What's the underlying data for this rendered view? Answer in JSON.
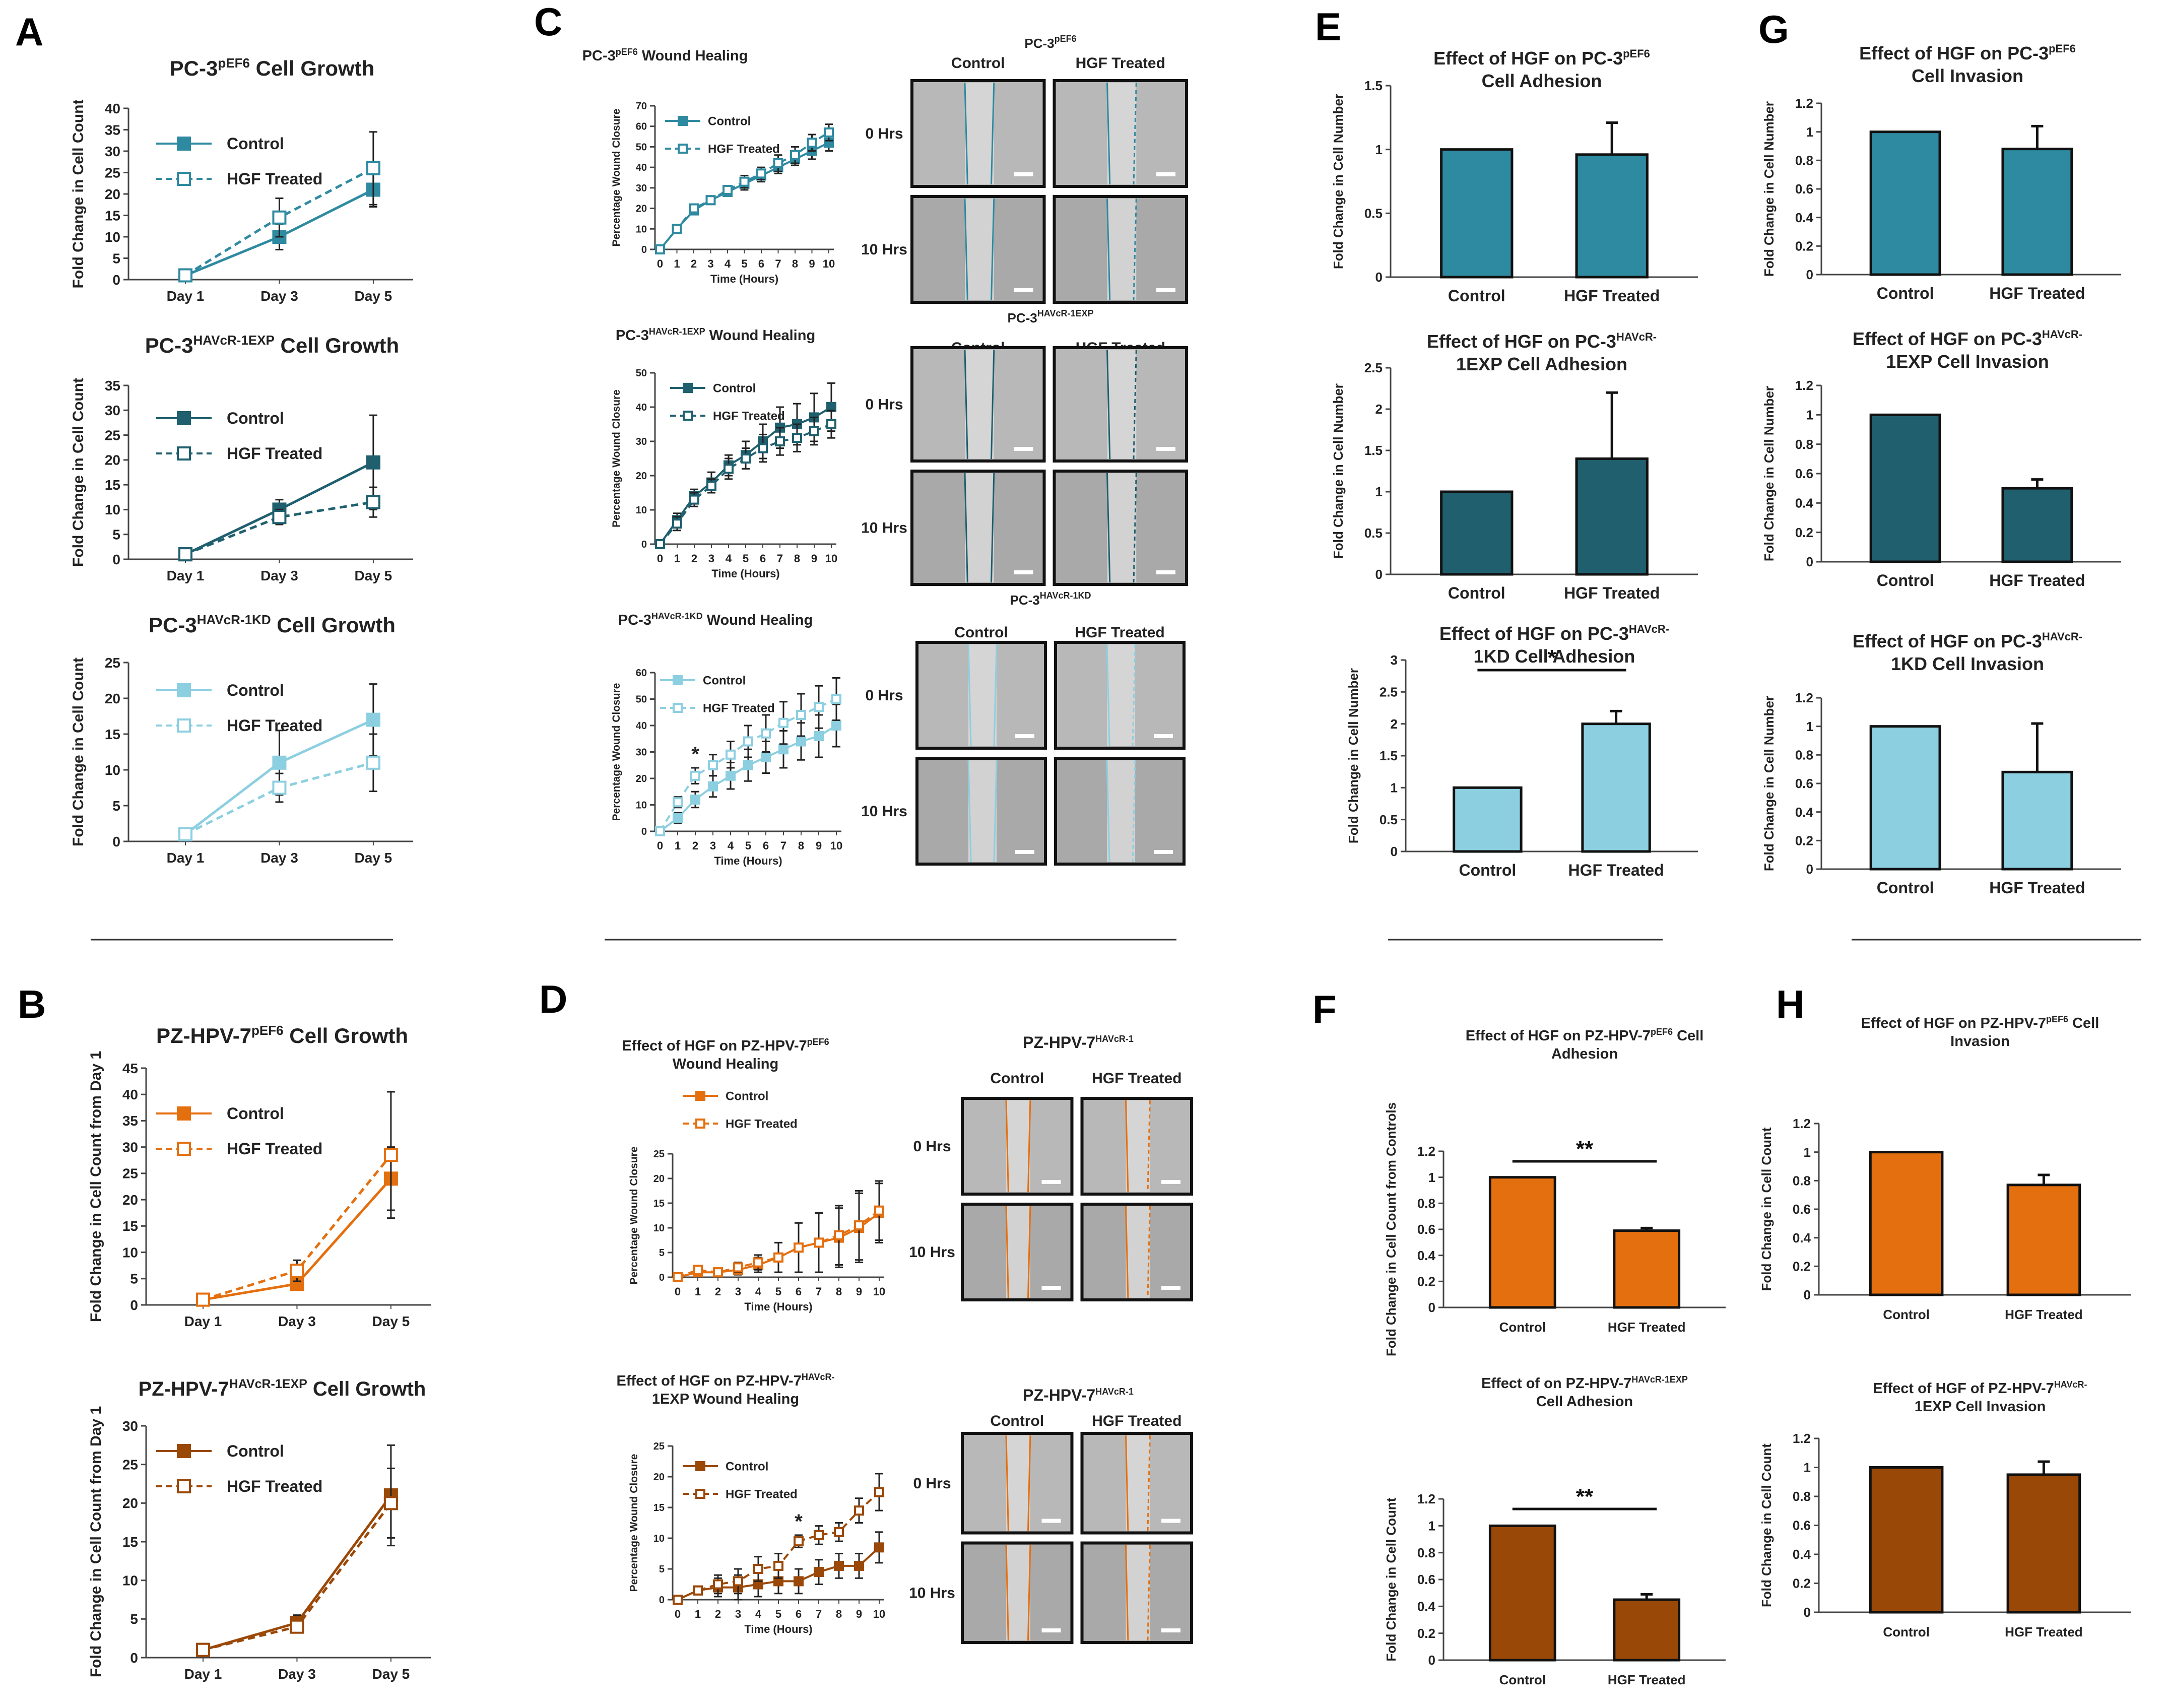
{
  "colors": {
    "teal": "#2e8aa0",
    "darkteal": "#1f5f6e",
    "lightblue": "#8ccfe0",
    "orange": "#e46f0f",
    "brown": "#9a4808",
    "micro": "#9b9b9b",
    "microdark": "#4a4a4a"
  },
  "chart_data": [
    {
      "id": "A1",
      "type": "line",
      "panel": "A",
      "title": "PC-3",
      "title_sup": "pEF6",
      "title_suffix": " Cell Growth",
      "ylabel": "Fold Change in Cell Count",
      "categories": [
        "Day 1",
        "Day 3",
        "Day 5"
      ],
      "ylim": [
        0,
        40
      ],
      "yticks": [
        0,
        5,
        10,
        15,
        20,
        25,
        30,
        35,
        40
      ],
      "color": "teal",
      "series": [
        {
          "name": "Control",
          "values": [
            1,
            10,
            21
          ],
          "errors": [
            0,
            3,
            4
          ]
        },
        {
          "name": "HGF Treated",
          "values": [
            1,
            14.5,
            26
          ],
          "errors": [
            0,
            4.5,
            8.5
          ]
        }
      ]
    },
    {
      "id": "A2",
      "type": "line",
      "title": "PC-3",
      "title_sup": "HAVcR-1EXP",
      "title_suffix": " Cell Growth",
      "ylabel": "Fold Change in Cell Count",
      "categories": [
        "Day 1",
        "Day 3",
        "Day 5"
      ],
      "ylim": [
        0,
        35
      ],
      "yticks": [
        0,
        5,
        10,
        15,
        20,
        25,
        30,
        35
      ],
      "color": "darkteal",
      "series": [
        {
          "name": "Control",
          "values": [
            1,
            10,
            19.5
          ],
          "errors": [
            0,
            2,
            9.5
          ]
        },
        {
          "name": "HGF Treated",
          "values": [
            1,
            8.5,
            11.5
          ],
          "errors": [
            0,
            1.5,
            3
          ]
        }
      ]
    },
    {
      "id": "A3",
      "type": "line",
      "title": "PC-3",
      "title_sup": "HAVcR-1KD",
      "title_suffix": " Cell Growth",
      "ylabel": "Fold Change in Cell Count",
      "categories": [
        "Day 1",
        "Day 3",
        "Day 5"
      ],
      "ylim": [
        0,
        25
      ],
      "yticks": [
        0,
        5,
        10,
        15,
        20,
        25
      ],
      "color": "lightblue",
      "series": [
        {
          "name": "Control",
          "values": [
            1,
            11,
            17
          ],
          "errors": [
            0,
            4.5,
            5
          ]
        },
        {
          "name": "HGF Treated",
          "values": [
            1,
            7.5,
            11
          ],
          "errors": [
            0,
            2,
            4
          ]
        }
      ]
    },
    {
      "id": "B1",
      "type": "line",
      "panel": "B",
      "title": "PZ-HPV-7",
      "title_sup": "pEF6",
      "title_suffix": " Cell Growth",
      "ylabel": "Fold Change in Cell Count from Day 1",
      "categories": [
        "Day 1",
        "Day 3",
        "Day 5"
      ],
      "ylim": [
        0,
        45
      ],
      "yticks": [
        0,
        5,
        10,
        15,
        20,
        25,
        30,
        35,
        40,
        45
      ],
      "color": "orange",
      "series": [
        {
          "name": "Control",
          "values": [
            1,
            4,
            24
          ],
          "errors": [
            0,
            1,
            6
          ]
        },
        {
          "name": "HGF Treated",
          "values": [
            1,
            6.5,
            28.5
          ],
          "errors": [
            0,
            2,
            12
          ]
        }
      ]
    },
    {
      "id": "B2",
      "type": "line",
      "title": "PZ-HPV-7",
      "title_sup": "HAVcR-1EXP",
      "title_suffix": " Cell Growth",
      "ylabel": "Fold Change in Cell Count from Day 1",
      "categories": [
        "Day 1",
        "Day 3",
        "Day 5"
      ],
      "ylim": [
        0,
        30
      ],
      "yticks": [
        0,
        5,
        10,
        15,
        20,
        25,
        30
      ],
      "color": "brown",
      "series": [
        {
          "name": "Control",
          "values": [
            1,
            4.5,
            21
          ],
          "errors": [
            0,
            1,
            6.5
          ]
        },
        {
          "name": "HGF Treated",
          "values": [
            1,
            4,
            20
          ],
          "errors": [
            0,
            0.5,
            4.5
          ]
        }
      ]
    },
    {
      "id": "C1",
      "type": "line",
      "panel": "C",
      "title": "PC-3",
      "title_sup": "pEF6",
      "title_suffix": " Wound Healing",
      "ylabel": "Percentage Wound Closure",
      "xlabel": "Time (Hours)",
      "x": [
        0,
        1,
        2,
        3,
        4,
        5,
        6,
        7,
        8,
        9,
        10
      ],
      "ylim": [
        0,
        70
      ],
      "yticks": [
        0,
        10,
        20,
        30,
        40,
        50,
        60,
        70
      ],
      "color": "teal",
      "series": [
        {
          "name": "Control",
          "values": [
            0,
            10,
            19,
            24,
            28,
            32,
            36,
            40,
            44,
            48,
            52
          ],
          "errors": [
            1,
            2,
            2,
            2,
            2,
            3,
            3,
            3,
            3,
            4,
            4
          ]
        },
        {
          "name": "HGF Treated",
          "values": [
            0,
            10,
            20,
            24,
            29,
            33,
            37,
            42,
            46,
            52,
            57
          ],
          "errors": [
            1,
            2,
            2,
            2,
            2,
            3,
            3,
            4,
            4,
            4,
            4
          ]
        }
      ]
    },
    {
      "id": "C2",
      "type": "line",
      "title": "PC-3",
      "title_sup": "HAVcR-1EXP",
      "title_suffix": " Wound Healing",
      "ylabel": "Percentage Wound Closure",
      "xlabel": "Time (Hours)",
      "x": [
        0,
        1,
        2,
        3,
        4,
        5,
        6,
        7,
        8,
        9,
        10
      ],
      "ylim": [
        0,
        50
      ],
      "yticks": [
        0,
        10,
        20,
        30,
        40,
        50
      ],
      "color": "darkteal",
      "series": [
        {
          "name": "Control",
          "values": [
            0,
            7,
            14,
            18,
            23,
            26,
            30,
            34,
            35,
            37,
            40
          ],
          "errors": [
            1,
            2,
            2,
            3,
            3,
            4,
            5,
            6,
            6,
            7,
            7
          ]
        },
        {
          "name": "HGF Treated",
          "values": [
            0,
            6,
            13,
            17,
            22,
            25,
            28,
            30,
            31,
            33,
            35
          ],
          "errors": [
            1,
            2,
            2,
            2,
            3,
            3,
            4,
            4,
            4,
            4,
            4
          ]
        }
      ]
    },
    {
      "id": "C3",
      "type": "line",
      "title": "PC-3",
      "title_sup": "HAVcR-1KD",
      "title_suffix": " Wound Healing",
      "ylabel": "Percentage Wound Closure",
      "xlabel": "Time (Hours)",
      "x": [
        0,
        1,
        2,
        3,
        4,
        5,
        6,
        7,
        8,
        9,
        10
      ],
      "ylim": [
        0,
        60
      ],
      "yticks": [
        0,
        10,
        20,
        30,
        40,
        50,
        60
      ],
      "color": "lightblue",
      "star": 2,
      "series": [
        {
          "name": "Control",
          "values": [
            0,
            5,
            12,
            17,
            21,
            25,
            28,
            31,
            34,
            36,
            40
          ],
          "errors": [
            1,
            2,
            3,
            4,
            5,
            6,
            6,
            7,
            7,
            8,
            8
          ]
        },
        {
          "name": "HGF Treated",
          "values": [
            0,
            11,
            21,
            25,
            29,
            34,
            37,
            41,
            44,
            47,
            50
          ],
          "errors": [
            1,
            2,
            3,
            4,
            5,
            6,
            7,
            8,
            8,
            8,
            8
          ]
        }
      ]
    },
    {
      "id": "D1",
      "type": "line",
      "panel": "D",
      "title": "Effect of HGF on PZ-HPV-7",
      "title_sup": "pEF6",
      "title_line2": "Wound Healing",
      "ylabel": "Percentage Wound Closure",
      "xlabel": "Time (Hours)",
      "x": [
        0,
        1,
        2,
        3,
        4,
        5,
        6,
        7,
        8,
        9,
        10
      ],
      "ylim": [
        0,
        25
      ],
      "yticks": [
        0,
        5,
        10,
        15,
        20,
        25
      ],
      "color": "orange",
      "series": [
        {
          "name": "Control",
          "values": [
            0,
            1,
            1,
            1.5,
            2.5,
            4,
            6,
            7,
            8,
            10,
            13
          ],
          "errors": [
            0.3,
            0.5,
            0.5,
            1,
            1.5,
            3,
            5,
            6,
            6,
            7,
            6
          ]
        },
        {
          "name": "HGF Treated",
          "values": [
            0,
            1.5,
            1,
            2,
            3,
            4,
            6,
            7,
            8.5,
            10.5,
            13.5
          ],
          "errors": [
            0.3,
            0.5,
            0.5,
            1,
            1.5,
            3,
            5,
            6,
            6,
            7,
            6
          ]
        }
      ]
    },
    {
      "id": "D2",
      "type": "line",
      "title": "Effect of HGF on PZ-HPV-7",
      "title_sup": "HAVcR-",
      "title_line2": "1EXP Wound Healing",
      "ylabel": "Percentage Wound Closure",
      "xlabel": "Time (Hours)",
      "x": [
        0,
        1,
        2,
        3,
        4,
        5,
        6,
        7,
        8,
        9,
        10
      ],
      "ylim": [
        0,
        25
      ],
      "yticks": [
        0,
        5,
        10,
        15,
        20,
        25
      ],
      "color": "brown",
      "star": 6,
      "series": [
        {
          "name": "Control",
          "values": [
            0,
            1.5,
            2,
            2,
            2.5,
            3,
            3,
            4.5,
            5.5,
            5.5,
            8.5
          ],
          "errors": [
            0.3,
            0.5,
            1.5,
            2,
            2,
            2,
            2,
            2,
            2,
            2,
            2.5
          ]
        },
        {
          "name": "HGF Treated",
          "values": [
            0,
            1.5,
            2.5,
            3,
            5,
            5.5,
            9.5,
            10.5,
            11,
            14.5,
            17.5
          ],
          "errors": [
            0.3,
            0.5,
            1.5,
            2,
            2,
            2,
            1,
            1.5,
            1.5,
            2,
            3
          ]
        }
      ]
    },
    {
      "id": "E1",
      "type": "bar",
      "panel": "E",
      "title": "Effect of HGF on PC-3",
      "title_sup": "pEF6",
      "title_line2": "Cell Adhesion",
      "ylabel": "Fold Change in Cell Number",
      "categories": [
        "Control",
        "HGF Treated"
      ],
      "values": [
        1,
        0.96
      ],
      "errors": [
        0,
        0.25
      ],
      "ylim": [
        0,
        1.5
      ],
      "yticks": [
        "0",
        "0.5",
        "1",
        "1.5"
      ],
      "color": "teal"
    },
    {
      "id": "E2",
      "type": "bar",
      "title": "Effect of HGF on PC-3",
      "title_sup": "HAVcR-",
      "title_line2": "1EXP Cell Adhesion",
      "ylabel": "Fold Change in Cell Number",
      "categories": [
        "Control",
        "HGF Treated"
      ],
      "values": [
        1,
        1.4
      ],
      "errors": [
        0,
        0.8
      ],
      "ylim": [
        0,
        2.5
      ],
      "yticks": [
        "0",
        "0.5",
        "1",
        "1.5",
        "2",
        "2.5"
      ],
      "color": "darkteal"
    },
    {
      "id": "E3",
      "type": "bar",
      "title": "Effect of HGF on PC-3",
      "title_sup": "HAVcR-",
      "title_line2": "1KD Cell Adhesion",
      "ylabel": "Fold Change in Cell Number",
      "categories": [
        "Control",
        "HGF Treated"
      ],
      "values": [
        1,
        2
      ],
      "errors": [
        0,
        0.2
      ],
      "ylim": [
        0,
        3
      ],
      "yticks": [
        "0",
        "0.5",
        "1",
        "1.5",
        "2",
        "2.5",
        "3"
      ],
      "color": "lightblue",
      "sig": "*"
    },
    {
      "id": "F1",
      "type": "bar",
      "panel": "F",
      "title": "Effect of HGF on PZ-HPV-7",
      "title_sup": "pEF6",
      "title_suffix": " Cell",
      "title_line2": "Adhesion",
      "ylabel": "Fold Change in Cell Count from Controls",
      "categories": [
        "Control",
        "HGF Treated"
      ],
      "values": [
        1,
        0.59
      ],
      "errors": [
        0,
        0.02
      ],
      "ylim": [
        0,
        1.2
      ],
      "yticks": [
        "0",
        "0.2",
        "0.4",
        "0.6",
        "0.8",
        "1",
        "1.2"
      ],
      "color": "orange",
      "sig": "**"
    },
    {
      "id": "F2",
      "type": "bar",
      "title": "Effect of  on PZ-HPV-7",
      "title_sup": "HAVcR-1EXP",
      "title_line2": "Cell Adhesion",
      "ylabel": "Fold Change in Cell Count",
      "categories": [
        "Control",
        "HGF Treated"
      ],
      "values": [
        1,
        0.45
      ],
      "errors": [
        0,
        0.04
      ],
      "ylim": [
        0,
        1.2
      ],
      "yticks": [
        "0",
        "0.2",
        "0.4",
        "0.6",
        "0.8",
        "1",
        "1.2"
      ],
      "color": "brown",
      "sig": "**"
    },
    {
      "id": "G1",
      "type": "bar",
      "panel": "G",
      "title": "Effect of HGF on PC-3",
      "title_sup": "pEF6",
      "title_line2": "Cell Invasion",
      "ylabel": "Fold Change in Cell Number",
      "categories": [
        "Control",
        "HGF Treated"
      ],
      "values": [
        1,
        0.88
      ],
      "errors": [
        0,
        0.16
      ],
      "ylim": [
        0,
        1.2
      ],
      "yticks": [
        "0",
        "0.2",
        "0.4",
        "0.6",
        "0.8",
        "1",
        "1.2"
      ],
      "color": "teal"
    },
    {
      "id": "G2",
      "type": "bar",
      "title": "Effect of HGF on PC-3",
      "title_sup": "HAVcR-",
      "title_line2": "1EXP Cell Invasion",
      "ylabel": "Fold Change in Cell Number",
      "categories": [
        "Control",
        "HGF Treated"
      ],
      "values": [
        1,
        0.5
      ],
      "errors": [
        0,
        0.06
      ],
      "ylim": [
        0,
        1.2
      ],
      "yticks": [
        "0",
        "0.2",
        "0.4",
        "0.6",
        "0.8",
        "1",
        "1.2"
      ],
      "color": "darkteal"
    },
    {
      "id": "G3",
      "type": "bar",
      "title": "Effect of HGF on PC-3",
      "title_sup": "HAVcR-",
      "title_line2": "1KD Cell Invasion",
      "ylabel": "Fold Change in Cell Number",
      "categories": [
        "Control",
        "HGF Treated"
      ],
      "values": [
        1,
        0.68
      ],
      "errors": [
        0,
        0.34
      ],
      "ylim": [
        0,
        1.2
      ],
      "yticks": [
        "0",
        "0.2",
        "0.4",
        "0.6",
        "0.8",
        "1",
        "1.2"
      ],
      "color": "lightblue"
    },
    {
      "id": "H1",
      "type": "bar",
      "panel": "H",
      "title": "Effect of HGF on PZ-HPV-7",
      "title_sup": "pEF6",
      "title_suffix": " Cell",
      "title_line2": "Invasion",
      "ylabel": "Fold Change in Cell Count",
      "categories": [
        "Control",
        "HGF Treated"
      ],
      "values": [
        1,
        0.77
      ],
      "errors": [
        0,
        0.07
      ],
      "ylim": [
        0,
        1.2
      ],
      "yticks": [
        "0",
        "0.2",
        "0.4",
        "0.6",
        "0.8",
        "1",
        "1.2"
      ],
      "color": "orange"
    },
    {
      "id": "H2",
      "type": "bar",
      "title": "Effect of HGF of PZ-HPV-7",
      "title_sup": "HAVcR-",
      "title_line2": "1EXP Cell Invasion",
      "ylabel": "Fold Change in Cell Count",
      "categories": [
        "Control",
        "HGF Treated"
      ],
      "values": [
        1,
        0.95
      ],
      "errors": [
        0,
        0.09
      ],
      "ylim": [
        0,
        1.2
      ],
      "yticks": [
        "0",
        "0.2",
        "0.4",
        "0.6",
        "0.8",
        "1",
        "1.2"
      ],
      "color": "brown"
    }
  ],
  "micrographs": [
    {
      "id": "MC1",
      "title": "PC-3",
      "title_sup": "pEF6",
      "cols": [
        "Control",
        "HGF Treated"
      ],
      "rows": [
        "0 Hrs",
        "10 Hrs"
      ],
      "color": "teal"
    },
    {
      "id": "MC2",
      "title": "PC-3",
      "title_sup": "HAVcR-1EXP",
      "cols": [
        "Control",
        "HGF Treated"
      ],
      "rows": [
        "0 Hrs",
        "10 Hrs"
      ],
      "color": "darkteal"
    },
    {
      "id": "MC3",
      "title": "PC-3",
      "title_sup": "HAVcR-1KD",
      "cols": [
        "Control",
        "HGF Treated"
      ],
      "rows": [
        "0 Hrs",
        "10 Hrs"
      ],
      "color": "lightblue"
    },
    {
      "id": "MD1",
      "title": "PZ-HPV-7",
      "title_sup": "HAVcR-1",
      "cols": [
        "Control",
        "HGF Treated"
      ],
      "rows": [
        "0 Hrs",
        "10 Hrs"
      ],
      "color": "orange"
    },
    {
      "id": "MD2",
      "title": "PZ-HPV-7",
      "title_sup": "HAVcR-1",
      "cols": [
        "Control",
        "HGF Treated"
      ],
      "rows": [
        "0 Hrs",
        "10 Hrs"
      ],
      "color": "orange"
    }
  ]
}
